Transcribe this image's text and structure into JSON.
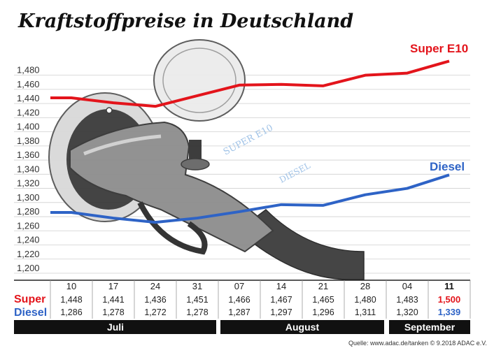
{
  "title": "Kraftstoffpreise in Deutschland",
  "source": "Quelle: www.adac.de/tanken  © 9.2018  ADAC e.V.",
  "colors": {
    "super": "#e3141b",
    "diesel": "#2e63c6",
    "band": "#111111"
  },
  "illustration": {
    "name": "fuel-nozzle-illustration",
    "text_super": "SUPER E10",
    "text_diesel": "DIESEL"
  },
  "chart_data": {
    "type": "line",
    "title": "Kraftstoffpreise in Deutschland",
    "categories": [
      "10",
      "17",
      "24",
      "31",
      "07",
      "14",
      "21",
      "28",
      "04",
      "11"
    ],
    "months": [
      "Juli",
      "August",
      "September"
    ],
    "series": [
      {
        "name": "Super E10",
        "row_label": "Super",
        "values": [
          1.448,
          1.441,
          1.436,
          1.451,
          1.466,
          1.467,
          1.465,
          1.48,
          1.483,
          1.5
        ],
        "labels": [
          "1,448",
          "1,441",
          "1,436",
          "1,451",
          "1,466",
          "1,467",
          "1,465",
          "1,480",
          "1,483",
          "1,500"
        ]
      },
      {
        "name": "Diesel",
        "row_label": "Diesel",
        "values": [
          1.286,
          1.278,
          1.272,
          1.278,
          1.287,
          1.297,
          1.296,
          1.311,
          1.32,
          1.339
        ],
        "labels": [
          "1,286",
          "1,278",
          "1,272",
          "1,278",
          "1,287",
          "1,297",
          "1,296",
          "1,311",
          "1,320",
          "1,339"
        ]
      }
    ],
    "ylim": [
      1.2,
      1.5
    ],
    "yticks": [
      "1,200",
      "1,220",
      "1,240",
      "1,260",
      "1,280",
      "1,300",
      "1,320",
      "1,340",
      "1,360",
      "1,380",
      "1,400",
      "1,420",
      "1,440",
      "1,460",
      "1,480"
    ],
    "ytick_values": [
      1.2,
      1.22,
      1.24,
      1.26,
      1.28,
      1.3,
      1.32,
      1.34,
      1.36,
      1.38,
      1.4,
      1.42,
      1.44,
      1.46,
      1.48
    ],
    "grid": true,
    "legend": "inline-right"
  }
}
